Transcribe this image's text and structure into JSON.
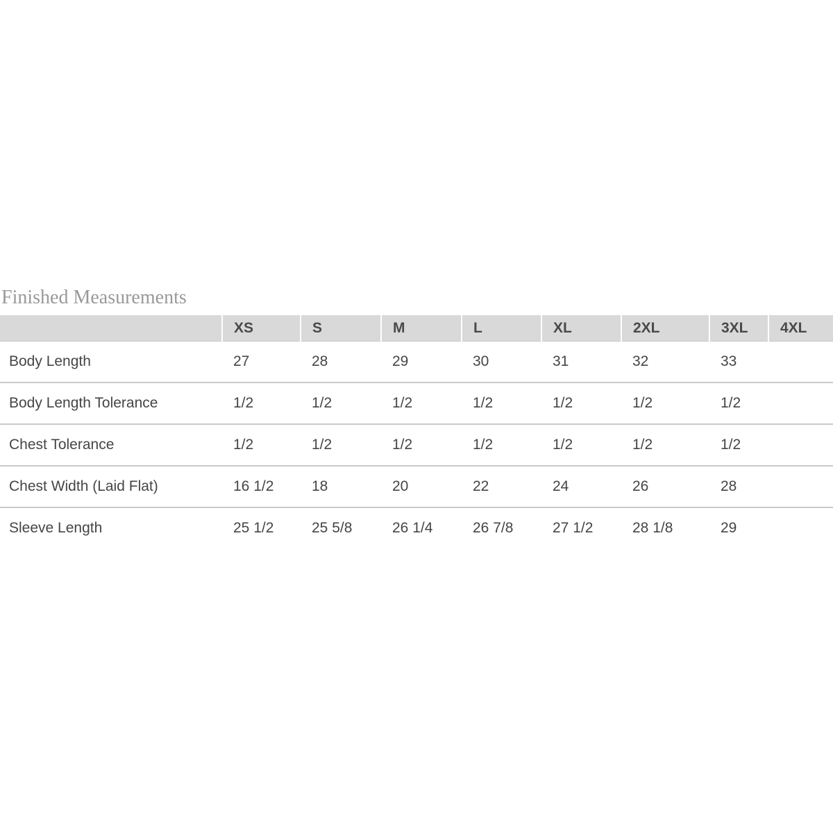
{
  "title": "Finished Measurements",
  "table": {
    "columns": [
      "",
      "XS",
      "S",
      "M",
      "L",
      "XL",
      "2XL",
      "3XL",
      "4XL"
    ],
    "rows": [
      {
        "label": "Body Length",
        "values": [
          "27",
          "28",
          "29",
          "30",
          "31",
          "32",
          "33",
          ""
        ]
      },
      {
        "label": "Body Length Tolerance",
        "values": [
          "1/2",
          "1/2",
          "1/2",
          "1/2",
          "1/2",
          "1/2",
          "1/2",
          ""
        ]
      },
      {
        "label": "Chest Tolerance",
        "values": [
          "1/2",
          "1/2",
          "1/2",
          "1/2",
          "1/2",
          "1/2",
          "1/2",
          ""
        ]
      },
      {
        "label": "Chest Width (Laid Flat)",
        "values": [
          "16 1/2",
          "18",
          "20",
          "22",
          "24",
          "26",
          "28",
          ""
        ]
      },
      {
        "label": "Sleeve Length",
        "values": [
          "25 1/2",
          "25 5/8",
          "26 1/4",
          "26 7/8",
          "27 1/2",
          "28 1/8",
          "29",
          ""
        ]
      }
    ]
  },
  "colors": {
    "header_background": "#d9d9d9",
    "title_text": "#999999",
    "body_text": "#454545",
    "row_divider": "#c9c9c9"
  }
}
